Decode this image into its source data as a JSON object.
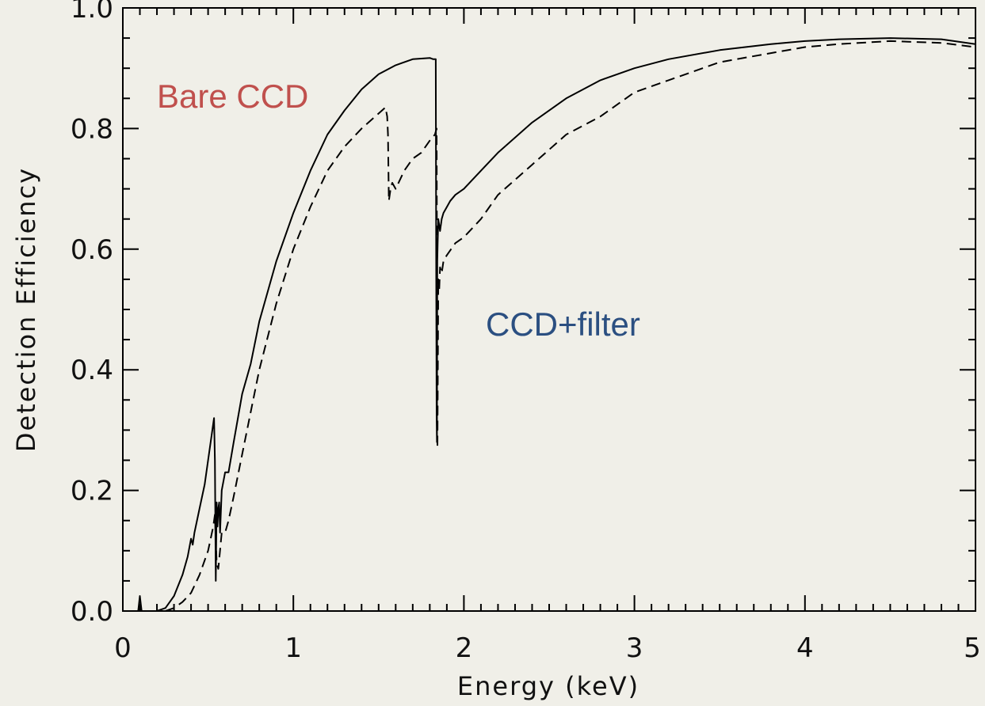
{
  "chart_data": {
    "type": "line",
    "title": "",
    "xlabel": "Energy (keV)",
    "ylabel": "Detection Efficiency",
    "xlim": [
      0,
      5
    ],
    "ylim": [
      0,
      1.0
    ],
    "x_ticks": [
      "0",
      "1",
      "2",
      "3",
      "4",
      "5"
    ],
    "y_ticks": [
      "0.0",
      "0.2",
      "0.4",
      "0.6",
      "0.8",
      "1.0"
    ],
    "x_tick_values": [
      0,
      1,
      2,
      3,
      4,
      5
    ],
    "y_tick_values": [
      0.0,
      0.2,
      0.4,
      0.6,
      0.8,
      1.0
    ],
    "grid": false,
    "annotations": [
      {
        "text": "Bare CCD",
        "color": "#c0504d",
        "series": "solid"
      },
      {
        "text": "CCD+filter",
        "color": "#2b4f81",
        "series": "dashed"
      }
    ],
    "series": [
      {
        "name": "Bare CCD",
        "style": "solid",
        "x": [
          0.09,
          0.1,
          0.11,
          0.2,
          0.25,
          0.3,
          0.35,
          0.38,
          0.4,
          0.41,
          0.42,
          0.45,
          0.48,
          0.5,
          0.52,
          0.535,
          0.54,
          0.545,
          0.55,
          0.555,
          0.56,
          0.565,
          0.57,
          0.58,
          0.6,
          0.62,
          0.65,
          0.7,
          0.75,
          0.8,
          0.9,
          1.0,
          1.1,
          1.2,
          1.3,
          1.4,
          1.5,
          1.6,
          1.7,
          1.8,
          1.82,
          1.835,
          1.838,
          1.84,
          1.842,
          1.844,
          1.846,
          1.85,
          1.86,
          1.87,
          1.88,
          1.9,
          1.92,
          1.95,
          2.0,
          2.1,
          2.2,
          2.4,
          2.6,
          2.8,
          3.0,
          3.2,
          3.5,
          3.8,
          4.0,
          4.2,
          4.5,
          4.8,
          5.0
        ],
        "y": [
          0.0,
          0.025,
          0.0,
          0.0,
          0.005,
          0.025,
          0.06,
          0.09,
          0.12,
          0.11,
          0.13,
          0.17,
          0.21,
          0.25,
          0.29,
          0.32,
          0.25,
          0.05,
          0.18,
          0.14,
          0.17,
          0.18,
          0.13,
          0.2,
          0.23,
          0.23,
          0.28,
          0.36,
          0.41,
          0.48,
          0.58,
          0.66,
          0.73,
          0.79,
          0.83,
          0.865,
          0.89,
          0.905,
          0.915,
          0.917,
          0.915,
          0.915,
          0.55,
          0.32,
          0.28,
          0.58,
          0.61,
          0.65,
          0.63,
          0.65,
          0.66,
          0.67,
          0.68,
          0.69,
          0.7,
          0.73,
          0.76,
          0.81,
          0.85,
          0.88,
          0.9,
          0.915,
          0.93,
          0.94,
          0.945,
          0.948,
          0.95,
          0.948,
          0.94
        ]
      },
      {
        "name": "CCD+filter",
        "style": "dashed",
        "x": [
          0.25,
          0.3,
          0.35,
          0.4,
          0.45,
          0.5,
          0.53,
          0.54,
          0.55,
          0.56,
          0.58,
          0.6,
          0.62,
          0.65,
          0.7,
          0.75,
          0.8,
          0.9,
          1.0,
          1.1,
          1.2,
          1.3,
          1.4,
          1.5,
          1.54,
          1.55,
          1.555,
          1.56,
          1.57,
          1.58,
          1.6,
          1.65,
          1.7,
          1.75,
          1.8,
          1.83,
          1.84,
          1.845,
          1.85,
          1.855,
          1.86,
          1.87,
          1.88,
          1.9,
          1.95,
          2.0,
          2.1,
          2.2,
          2.4,
          2.6,
          2.8,
          3.0,
          3.2,
          3.5,
          3.8,
          4.0,
          4.2,
          4.5,
          4.8,
          5.0
        ],
        "y": [
          0.0,
          0.005,
          0.015,
          0.03,
          0.06,
          0.1,
          0.14,
          0.16,
          0.08,
          0.07,
          0.13,
          0.13,
          0.15,
          0.19,
          0.26,
          0.33,
          0.4,
          0.51,
          0.6,
          0.67,
          0.73,
          0.77,
          0.8,
          0.825,
          0.835,
          0.82,
          0.79,
          0.68,
          0.7,
          0.71,
          0.7,
          0.73,
          0.75,
          0.76,
          0.78,
          0.79,
          0.8,
          0.27,
          0.55,
          0.53,
          0.57,
          0.56,
          0.58,
          0.59,
          0.61,
          0.62,
          0.65,
          0.69,
          0.74,
          0.79,
          0.82,
          0.86,
          0.88,
          0.91,
          0.925,
          0.935,
          0.94,
          0.945,
          0.942,
          0.935
        ]
      }
    ],
    "colors": {
      "background": "#f0efe8",
      "line": "#000000"
    }
  }
}
